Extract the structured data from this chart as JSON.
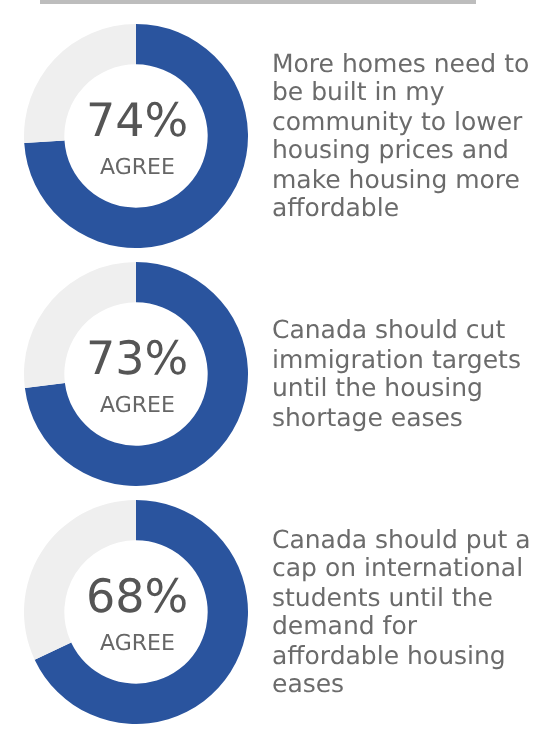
{
  "chart_data": [
    {
      "type": "donut",
      "title": "More homes need to be built in my community to lower housing prices and make housing more affordable",
      "categories": [
        "AGREE",
        null
      ],
      "values": [
        74,
        26
      ],
      "colors": [
        "#2a549e",
        "#efefef"
      ],
      "value_labels": [
        "74%",
        null
      ]
    },
    {
      "type": "donut",
      "title": "Canada should cut immigration targets until the housing shortage eases",
      "categories": [
        "AGREE",
        null
      ],
      "values": [
        73,
        27
      ],
      "colors": [
        "#2a549e",
        "#efefef"
      ],
      "value_labels": [
        "73%",
        null
      ]
    },
    {
      "type": "donut",
      "title": "Canada should put a cap on international students until the demand for affordable housing eases",
      "categories": [
        "AGREE",
        null
      ],
      "values": [
        68,
        32
      ],
      "colors": [
        "#2a549e",
        "#efefef"
      ],
      "value_labels": [
        "68%",
        null
      ]
    }
  ]
}
